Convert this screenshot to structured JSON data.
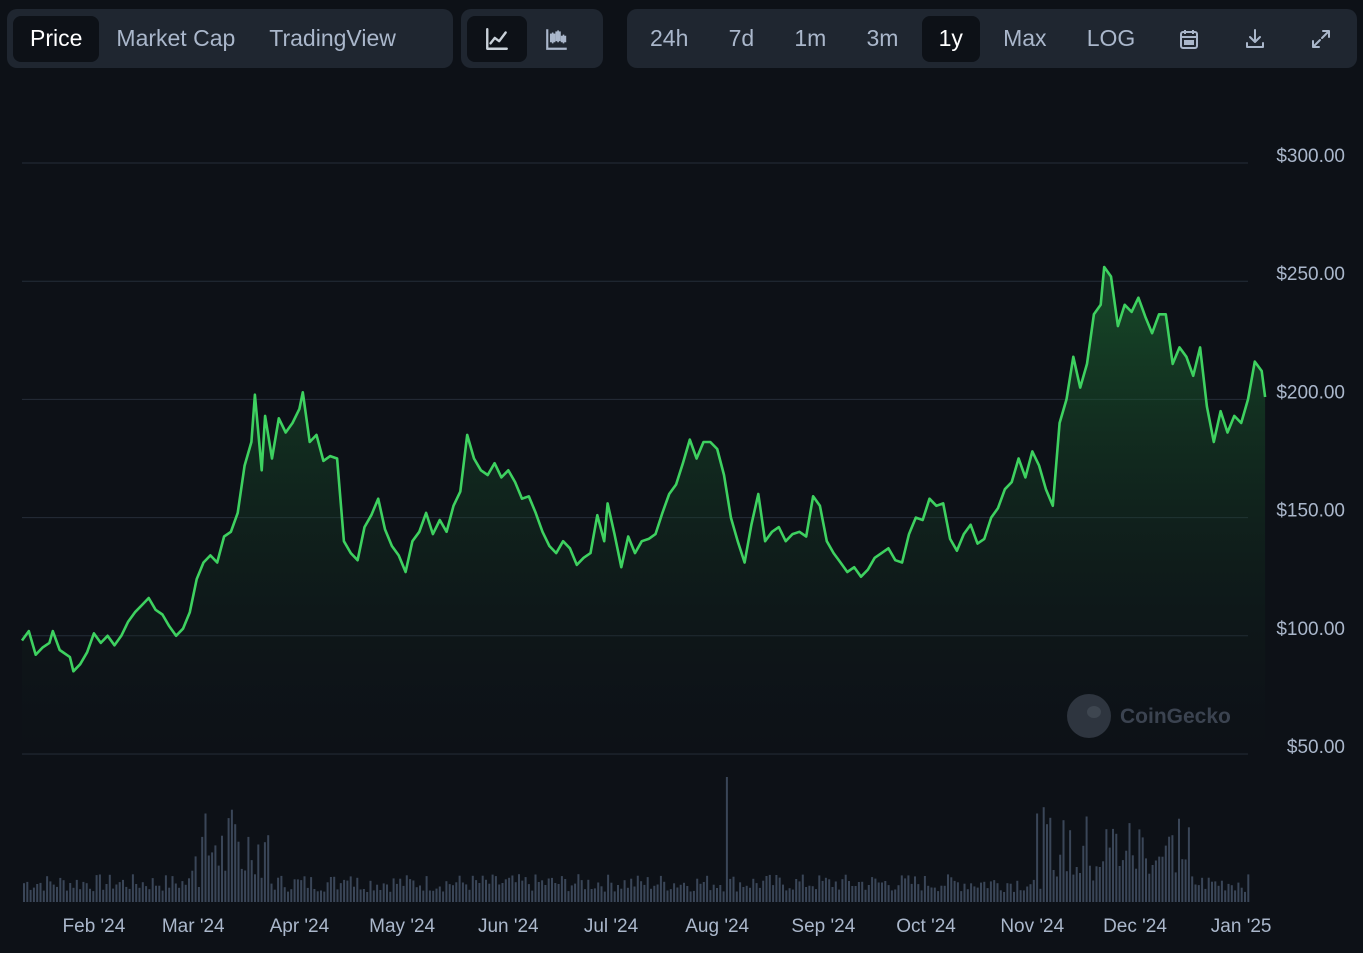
{
  "toolbar": {
    "views": [
      {
        "label": "Price",
        "active": true
      },
      {
        "label": "Market Cap",
        "active": false
      },
      {
        "label": "TradingView",
        "active": false
      }
    ],
    "chart_types": [
      {
        "icon": "line-chart-icon",
        "active": true
      },
      {
        "icon": "candlestick-chart-icon",
        "active": false
      }
    ],
    "ranges": [
      {
        "label": "24h",
        "active": false
      },
      {
        "label": "7d",
        "active": false
      },
      {
        "label": "1m",
        "active": false
      },
      {
        "label": "3m",
        "active": false
      },
      {
        "label": "1y",
        "active": true
      },
      {
        "label": "Max",
        "active": false
      },
      {
        "label": "LOG",
        "active": false
      }
    ],
    "tools": [
      "calendar-icon",
      "download-icon",
      "expand-icon"
    ]
  },
  "watermark": "CoinGecko",
  "colors": {
    "line": "#3ed160",
    "volume": "#3a4658",
    "grid": "#252d38",
    "background": "#0d1117"
  },
  "chart_data": [
    {
      "type": "area",
      "y_ticks": [
        "$300.00",
        "$250.00",
        "$200.00",
        "$150.00",
        "$100.00",
        "$50.00"
      ],
      "y_tick_values": [
        300,
        250,
        200,
        150,
        100,
        50
      ],
      "ylim": [
        50,
        300
      ],
      "x_ticks": [
        "Feb '24",
        "Mar '24",
        "Apr '24",
        "May '24",
        "Jun '24",
        "Jul '24",
        "Aug '24",
        "Sep '24",
        "Oct '24",
        "Nov '24",
        "Dec '24",
        "Jan '25"
      ],
      "x_tick_days": [
        21,
        50,
        81,
        111,
        142,
        172,
        203,
        234,
        264,
        295,
        325,
        356
      ],
      "xlim": [
        0,
        358
      ],
      "x_unit": "day",
      "grid": true,
      "series": [
        {
          "points": [
            [
              0,
              98
            ],
            [
              2,
              102
            ],
            [
              4,
              92
            ],
            [
              6,
              95
            ],
            [
              8,
              97
            ],
            [
              9,
              102
            ],
            [
              11,
              94
            ],
            [
              14,
              91
            ],
            [
              15,
              85
            ],
            [
              17,
              88
            ],
            [
              19,
              93
            ],
            [
              21,
              101
            ],
            [
              23,
              97
            ],
            [
              25,
              100
            ],
            [
              27,
              96
            ],
            [
              29,
              100
            ],
            [
              31,
              106
            ],
            [
              33,
              110
            ],
            [
              35,
              113
            ],
            [
              37,
              116
            ],
            [
              39,
              111
            ],
            [
              41,
              109
            ],
            [
              43,
              104
            ],
            [
              45,
              100
            ],
            [
              47,
              103
            ],
            [
              49,
              110
            ],
            [
              51,
              124
            ],
            [
              53,
              131
            ],
            [
              55,
              134
            ],
            [
              57,
              131
            ],
            [
              59,
              142
            ],
            [
              61,
              144
            ],
            [
              63,
              152
            ],
            [
              65,
              172
            ],
            [
              67,
              182
            ],
            [
              68,
              202
            ],
            [
              70,
              170
            ],
            [
              71,
              193
            ],
            [
              73,
              175
            ],
            [
              75,
              192
            ],
            [
              77,
              186
            ],
            [
              79,
              190
            ],
            [
              81,
              196
            ],
            [
              82,
              203
            ],
            [
              84,
              182
            ],
            [
              86,
              185
            ],
            [
              88,
              174
            ],
            [
              90,
              176
            ],
            [
              92,
              175
            ],
            [
              94,
              140
            ],
            [
              96,
              135
            ],
            [
              98,
              132
            ],
            [
              100,
              146
            ],
            [
              102,
              151
            ],
            [
              104,
              158
            ],
            [
              106,
              145
            ],
            [
              108,
              138
            ],
            [
              110,
              134
            ],
            [
              112,
              127
            ],
            [
              114,
              140
            ],
            [
              116,
              144
            ],
            [
              118,
              152
            ],
            [
              120,
              143
            ],
            [
              122,
              149
            ],
            [
              124,
              144
            ],
            [
              126,
              155
            ],
            [
              128,
              161
            ],
            [
              130,
              185
            ],
            [
              132,
              175
            ],
            [
              134,
              170
            ],
            [
              136,
              168
            ],
            [
              138,
              173
            ],
            [
              140,
              167
            ],
            [
              142,
              170
            ],
            [
              144,
              165
            ],
            [
              146,
              158
            ],
            [
              148,
              159
            ],
            [
              150,
              152
            ],
            [
              152,
              144
            ],
            [
              154,
              138
            ],
            [
              156,
              135
            ],
            [
              158,
              140
            ],
            [
              160,
              137
            ],
            [
              162,
              130
            ],
            [
              164,
              133
            ],
            [
              166,
              135
            ],
            [
              168,
              151
            ],
            [
              170,
              140
            ],
            [
              171,
              156
            ],
            [
              173,
              143
            ],
            [
              175,
              129
            ],
            [
              177,
              142
            ],
            [
              179,
              135
            ],
            [
              181,
              140
            ],
            [
              183,
              141
            ],
            [
              185,
              143
            ],
            [
              187,
              152
            ],
            [
              189,
              160
            ],
            [
              191,
              164
            ],
            [
              193,
              173
            ],
            [
              195,
              183
            ],
            [
              197,
              175
            ],
            [
              199,
              182
            ],
            [
              201,
              182
            ],
            [
              203,
              179
            ],
            [
              205,
              168
            ],
            [
              207,
              150
            ],
            [
              209,
              140
            ],
            [
              211,
              131
            ],
            [
              213,
              147
            ],
            [
              215,
              160
            ],
            [
              217,
              140
            ],
            [
              219,
              144
            ],
            [
              221,
              146
            ],
            [
              223,
              140
            ],
            [
              225,
              143
            ],
            [
              227,
              144
            ],
            [
              229,
              142
            ],
            [
              231,
              159
            ],
            [
              233,
              155
            ],
            [
              235,
              140
            ],
            [
              237,
              135
            ],
            [
              239,
              131
            ],
            [
              241,
              127
            ],
            [
              243,
              129
            ],
            [
              245,
              125
            ],
            [
              247,
              128
            ],
            [
              249,
              133
            ],
            [
              251,
              135
            ],
            [
              253,
              137
            ],
            [
              255,
              132
            ],
            [
              257,
              131
            ],
            [
              259,
              143
            ],
            [
              261,
              150
            ],
            [
              263,
              149
            ],
            [
              265,
              158
            ],
            [
              267,
              155
            ],
            [
              269,
              156
            ],
            [
              271,
              141
            ],
            [
              273,
              136
            ],
            [
              275,
              143
            ],
            [
              277,
              147
            ],
            [
              279,
              139
            ],
            [
              281,
              141
            ],
            [
              283,
              150
            ],
            [
              285,
              154
            ],
            [
              287,
              162
            ],
            [
              289,
              165
            ],
            [
              291,
              175
            ],
            [
              293,
              167
            ],
            [
              295,
              178
            ],
            [
              297,
              172
            ],
            [
              299,
              162
            ],
            [
              301,
              155
            ],
            [
              303,
              190
            ],
            [
              305,
              200
            ],
            [
              307,
              218
            ],
            [
              309,
              205
            ],
            [
              311,
              215
            ],
            [
              313,
              236
            ],
            [
              315,
              240
            ],
            [
              316,
              256
            ],
            [
              318,
              252
            ],
            [
              320,
              231
            ],
            [
              322,
              240
            ],
            [
              324,
              237
            ],
            [
              326,
              243
            ],
            [
              328,
              235
            ],
            [
              330,
              228
            ],
            [
              332,
              236
            ],
            [
              334,
              236
            ],
            [
              336,
              215
            ],
            [
              338,
              222
            ],
            [
              340,
              218
            ],
            [
              342,
              210
            ],
            [
              344,
              222
            ],
            [
              346,
              197
            ],
            [
              348,
              182
            ],
            [
              350,
              195
            ],
            [
              352,
              186
            ],
            [
              354,
              193
            ],
            [
              356,
              190
            ],
            [
              358,
              200
            ],
            [
              360,
              216
            ],
            [
              362,
              212
            ],
            [
              363,
              201
            ]
          ]
        }
      ]
    },
    {
      "type": "bar",
      "ylim": [
        0,
        1
      ]
    }
  ]
}
